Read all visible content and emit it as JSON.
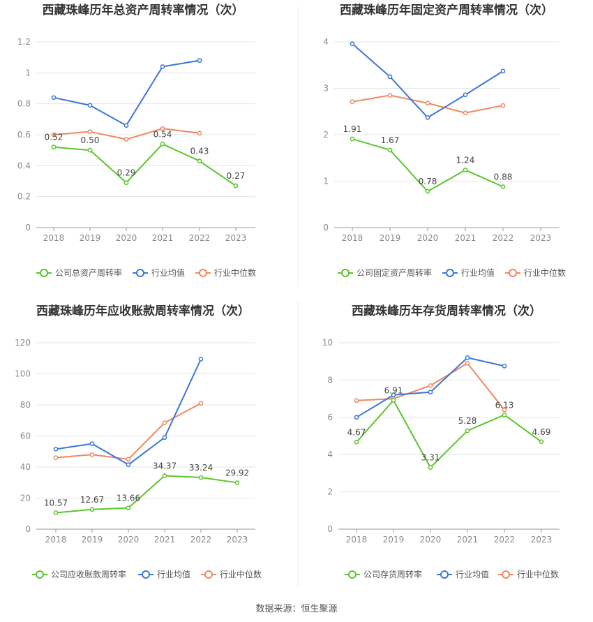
{
  "source": "数据来源：恒生聚源",
  "colors": {
    "company": "#5ac62c",
    "industry_avg": "#3a76d8",
    "industry_median": "#f0885f"
  },
  "chart_data": [
    {
      "type": "line",
      "title": "西藏珠峰历年总资产周转率情况（次）",
      "categories": [
        "2018",
        "2019",
        "2020",
        "2021",
        "2022",
        "2023"
      ],
      "ylim": [
        0,
        1.2
      ],
      "yticks": [
        "0",
        "0.2",
        "0.4",
        "0.6",
        "0.8",
        "1",
        "1.2"
      ],
      "grid": true,
      "legend_position": "bottom",
      "series": [
        {
          "name": "公司总资产周转率",
          "values": [
            0.52,
            0.5,
            0.29,
            0.54,
            0.43,
            0.27
          ],
          "labels": [
            "0.52",
            "0.50",
            "0.29",
            "0.54",
            "0.43",
            "0.27"
          ]
        },
        {
          "name": "行业均值",
          "values": [
            0.84,
            0.79,
            0.66,
            1.04,
            1.08,
            null
          ]
        },
        {
          "name": "行业中位数",
          "values": [
            0.6,
            0.62,
            0.57,
            0.64,
            0.61,
            null
          ]
        }
      ]
    },
    {
      "type": "line",
      "title": "西藏珠峰历年固定资产周转率情况（次）",
      "categories": [
        "2018",
        "2019",
        "2020",
        "2021",
        "2022",
        "2023"
      ],
      "ylim": [
        0,
        4
      ],
      "yticks": [
        "0",
        "1",
        "2",
        "3",
        "4"
      ],
      "grid": true,
      "legend_position": "bottom",
      "series": [
        {
          "name": "公司固定资产周转率",
          "values": [
            1.91,
            1.67,
            0.78,
            1.24,
            0.88,
            null
          ],
          "labels": [
            "1.91",
            "1.67",
            "0.78",
            "1.24",
            "0.88",
            ""
          ]
        },
        {
          "name": "行业均值",
          "values": [
            3.96,
            3.25,
            2.37,
            2.86,
            3.37,
            null
          ]
        },
        {
          "name": "行业中位数",
          "values": [
            2.71,
            2.85,
            2.68,
            2.47,
            2.63,
            null
          ]
        }
      ]
    },
    {
      "type": "line",
      "title": "西藏珠峰历年应收账款周转率情况（次）",
      "categories": [
        "2018",
        "2019",
        "2020",
        "2021",
        "2022",
        "2023"
      ],
      "ylim": [
        0,
        120
      ],
      "yticks": [
        "0",
        "20",
        "40",
        "60",
        "80",
        "100",
        "120"
      ],
      "grid": true,
      "legend_position": "bottom",
      "series": [
        {
          "name": "公司应收账款周转率",
          "values": [
            10.57,
            12.67,
            13.66,
            34.37,
            33.24,
            29.92
          ],
          "labels": [
            "10.57",
            "12.67",
            "13.66",
            "34.37",
            "33.24",
            "29.92"
          ]
        },
        {
          "name": "行业均值",
          "values": [
            51.5,
            55.0,
            41.5,
            59.0,
            109.5,
            null
          ]
        },
        {
          "name": "行业中位数",
          "values": [
            46.0,
            48.0,
            45.0,
            68.5,
            81.0,
            null
          ]
        }
      ]
    },
    {
      "type": "line",
      "title": "西藏珠峰历年存货周转率情况（次）",
      "categories": [
        "2018",
        "2019",
        "2020",
        "2021",
        "2022",
        "2023"
      ],
      "ylim": [
        0,
        10
      ],
      "yticks": [
        "0",
        "2",
        "4",
        "6",
        "8",
        "10"
      ],
      "grid": true,
      "legend_position": "bottom",
      "series": [
        {
          "name": "公司存货周转率",
          "values": [
            4.67,
            6.91,
            3.31,
            5.28,
            6.13,
            4.69
          ],
          "labels": [
            "4.67",
            "6.91",
            "3.31",
            "5.28",
            "6.13",
            "4.69"
          ]
        },
        {
          "name": "行业均值",
          "values": [
            6.0,
            7.2,
            7.35,
            9.2,
            8.75,
            null
          ]
        },
        {
          "name": "行业中位数",
          "values": [
            6.9,
            7.0,
            7.7,
            8.9,
            6.4,
            null
          ]
        }
      ]
    }
  ]
}
